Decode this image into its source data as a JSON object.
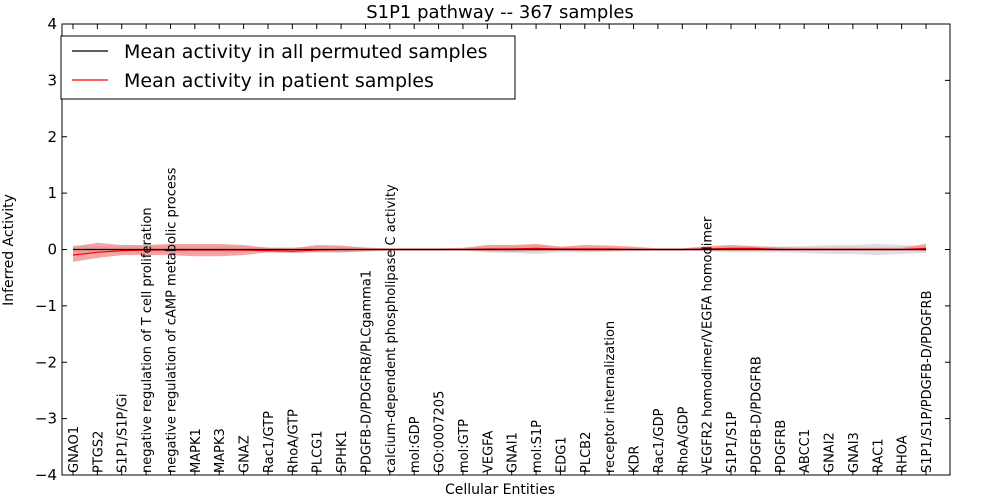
{
  "chart_data": {
    "type": "line",
    "title": "S1P1 pathway -- 367 samples",
    "xlabel": "Cellular Entities",
    "ylabel": "Inferred Activity",
    "ylim": [
      -4,
      4
    ],
    "yticks": [
      -4,
      -3,
      -2,
      -1,
      0,
      1,
      2,
      3,
      4
    ],
    "grid": false,
    "legend_position": "top-left",
    "categories": [
      "GNAO1",
      "PTGS2",
      "S1P1/S1P/Gi",
      "negative regulation of T cell proliferation",
      "negative regulation of cAMP metabolic process",
      "MAPK1",
      "MAPK3",
      "GNAZ",
      "Rac1/GTP",
      "RhoA/GTP",
      "PLCG1",
      "SPHK1",
      "PDGFB-D/PDGFRB/PLCgamma1",
      "calcium-dependent phospholipase C activity",
      "mol:GDP",
      "GO:0007205",
      "mol:GTP",
      "VEGFA",
      "GNAI1",
      "mol:S1P",
      "EDG1",
      "PLCB2",
      "receptor internalization",
      "KDR",
      "Rac1/GDP",
      "RhoA/GDP",
      "VEGFR2 homodimer/VEGFA homodimer",
      "S1P1/S1P",
      "PDGFB-D/PDGFRB",
      "PDGFRB",
      "ABCC1",
      "GNAI2",
      "GNAI3",
      "RAC1",
      "RHOA",
      "S1P1/S1P/PDGFB-D/PDGFRB"
    ],
    "series": [
      {
        "name": "Mean activity in all permuted samples",
        "color": "#000000",
        "values": [
          0.0,
          0.0,
          0.0,
          0.0,
          0.0,
          0.0,
          0.0,
          0.0,
          0.0,
          0.0,
          0.0,
          0.0,
          0.0,
          0.0,
          0.0,
          0.0,
          0.0,
          0.0,
          0.0,
          0.0,
          0.0,
          0.0,
          0.0,
          0.0,
          0.0,
          0.0,
          0.0,
          0.0,
          0.0,
          0.0,
          0.0,
          0.0,
          0.0,
          0.0,
          0.0,
          0.0
        ],
        "band_lower": [
          -0.08,
          -0.06,
          -0.06,
          -0.06,
          -0.06,
          -0.06,
          -0.06,
          -0.05,
          -0.04,
          -0.04,
          -0.05,
          -0.05,
          -0.04,
          -0.02,
          -0.02,
          -0.02,
          -0.02,
          -0.05,
          -0.06,
          -0.08,
          -0.05,
          -0.05,
          -0.04,
          -0.03,
          -0.02,
          -0.02,
          -0.03,
          -0.05,
          -0.05,
          -0.05,
          -0.06,
          -0.08,
          -0.08,
          -0.1,
          -0.08,
          -0.06
        ],
        "band_upper": [
          0.08,
          0.06,
          0.06,
          0.06,
          0.06,
          0.06,
          0.06,
          0.05,
          0.04,
          0.04,
          0.05,
          0.05,
          0.04,
          0.02,
          0.02,
          0.02,
          0.02,
          0.05,
          0.06,
          0.08,
          0.05,
          0.05,
          0.04,
          0.03,
          0.02,
          0.02,
          0.03,
          0.05,
          0.05,
          0.05,
          0.06,
          0.08,
          0.08,
          0.1,
          0.08,
          0.06
        ]
      },
      {
        "name": "Mean activity in patient samples",
        "color": "#ff0000",
        "band_color": "#f08080",
        "values": [
          -0.1,
          -0.05,
          -0.02,
          -0.01,
          -0.01,
          -0.01,
          -0.01,
          -0.01,
          -0.02,
          -0.03,
          -0.01,
          0.0,
          0.0,
          0.0,
          0.0,
          0.0,
          0.0,
          0.01,
          0.01,
          0.02,
          0.01,
          0.01,
          0.01,
          0.0,
          0.0,
          0.0,
          0.01,
          0.02,
          0.02,
          0.0,
          0.0,
          0.0,
          0.0,
          0.0,
          0.0,
          0.02
        ],
        "band_lower": [
          -0.22,
          -0.15,
          -0.1,
          -0.1,
          -0.1,
          -0.12,
          -0.12,
          -0.1,
          -0.05,
          -0.06,
          -0.05,
          -0.05,
          -0.03,
          -0.02,
          -0.02,
          -0.02,
          -0.02,
          -0.03,
          -0.04,
          -0.03,
          -0.02,
          -0.03,
          -0.03,
          -0.02,
          -0.02,
          -0.02,
          -0.02,
          -0.02,
          -0.02,
          -0.02,
          -0.02,
          -0.02,
          -0.02,
          -0.02,
          -0.02,
          -0.03
        ],
        "band_upper": [
          0.05,
          0.12,
          0.08,
          0.08,
          0.1,
          0.1,
          0.1,
          0.08,
          0.03,
          0.02,
          0.08,
          0.07,
          0.03,
          0.02,
          0.02,
          0.02,
          0.03,
          0.08,
          0.08,
          0.1,
          0.05,
          0.08,
          0.07,
          0.05,
          0.02,
          0.02,
          0.06,
          0.08,
          0.06,
          0.04,
          0.03,
          0.03,
          0.03,
          0.03,
          0.03,
          0.1
        ]
      }
    ]
  }
}
